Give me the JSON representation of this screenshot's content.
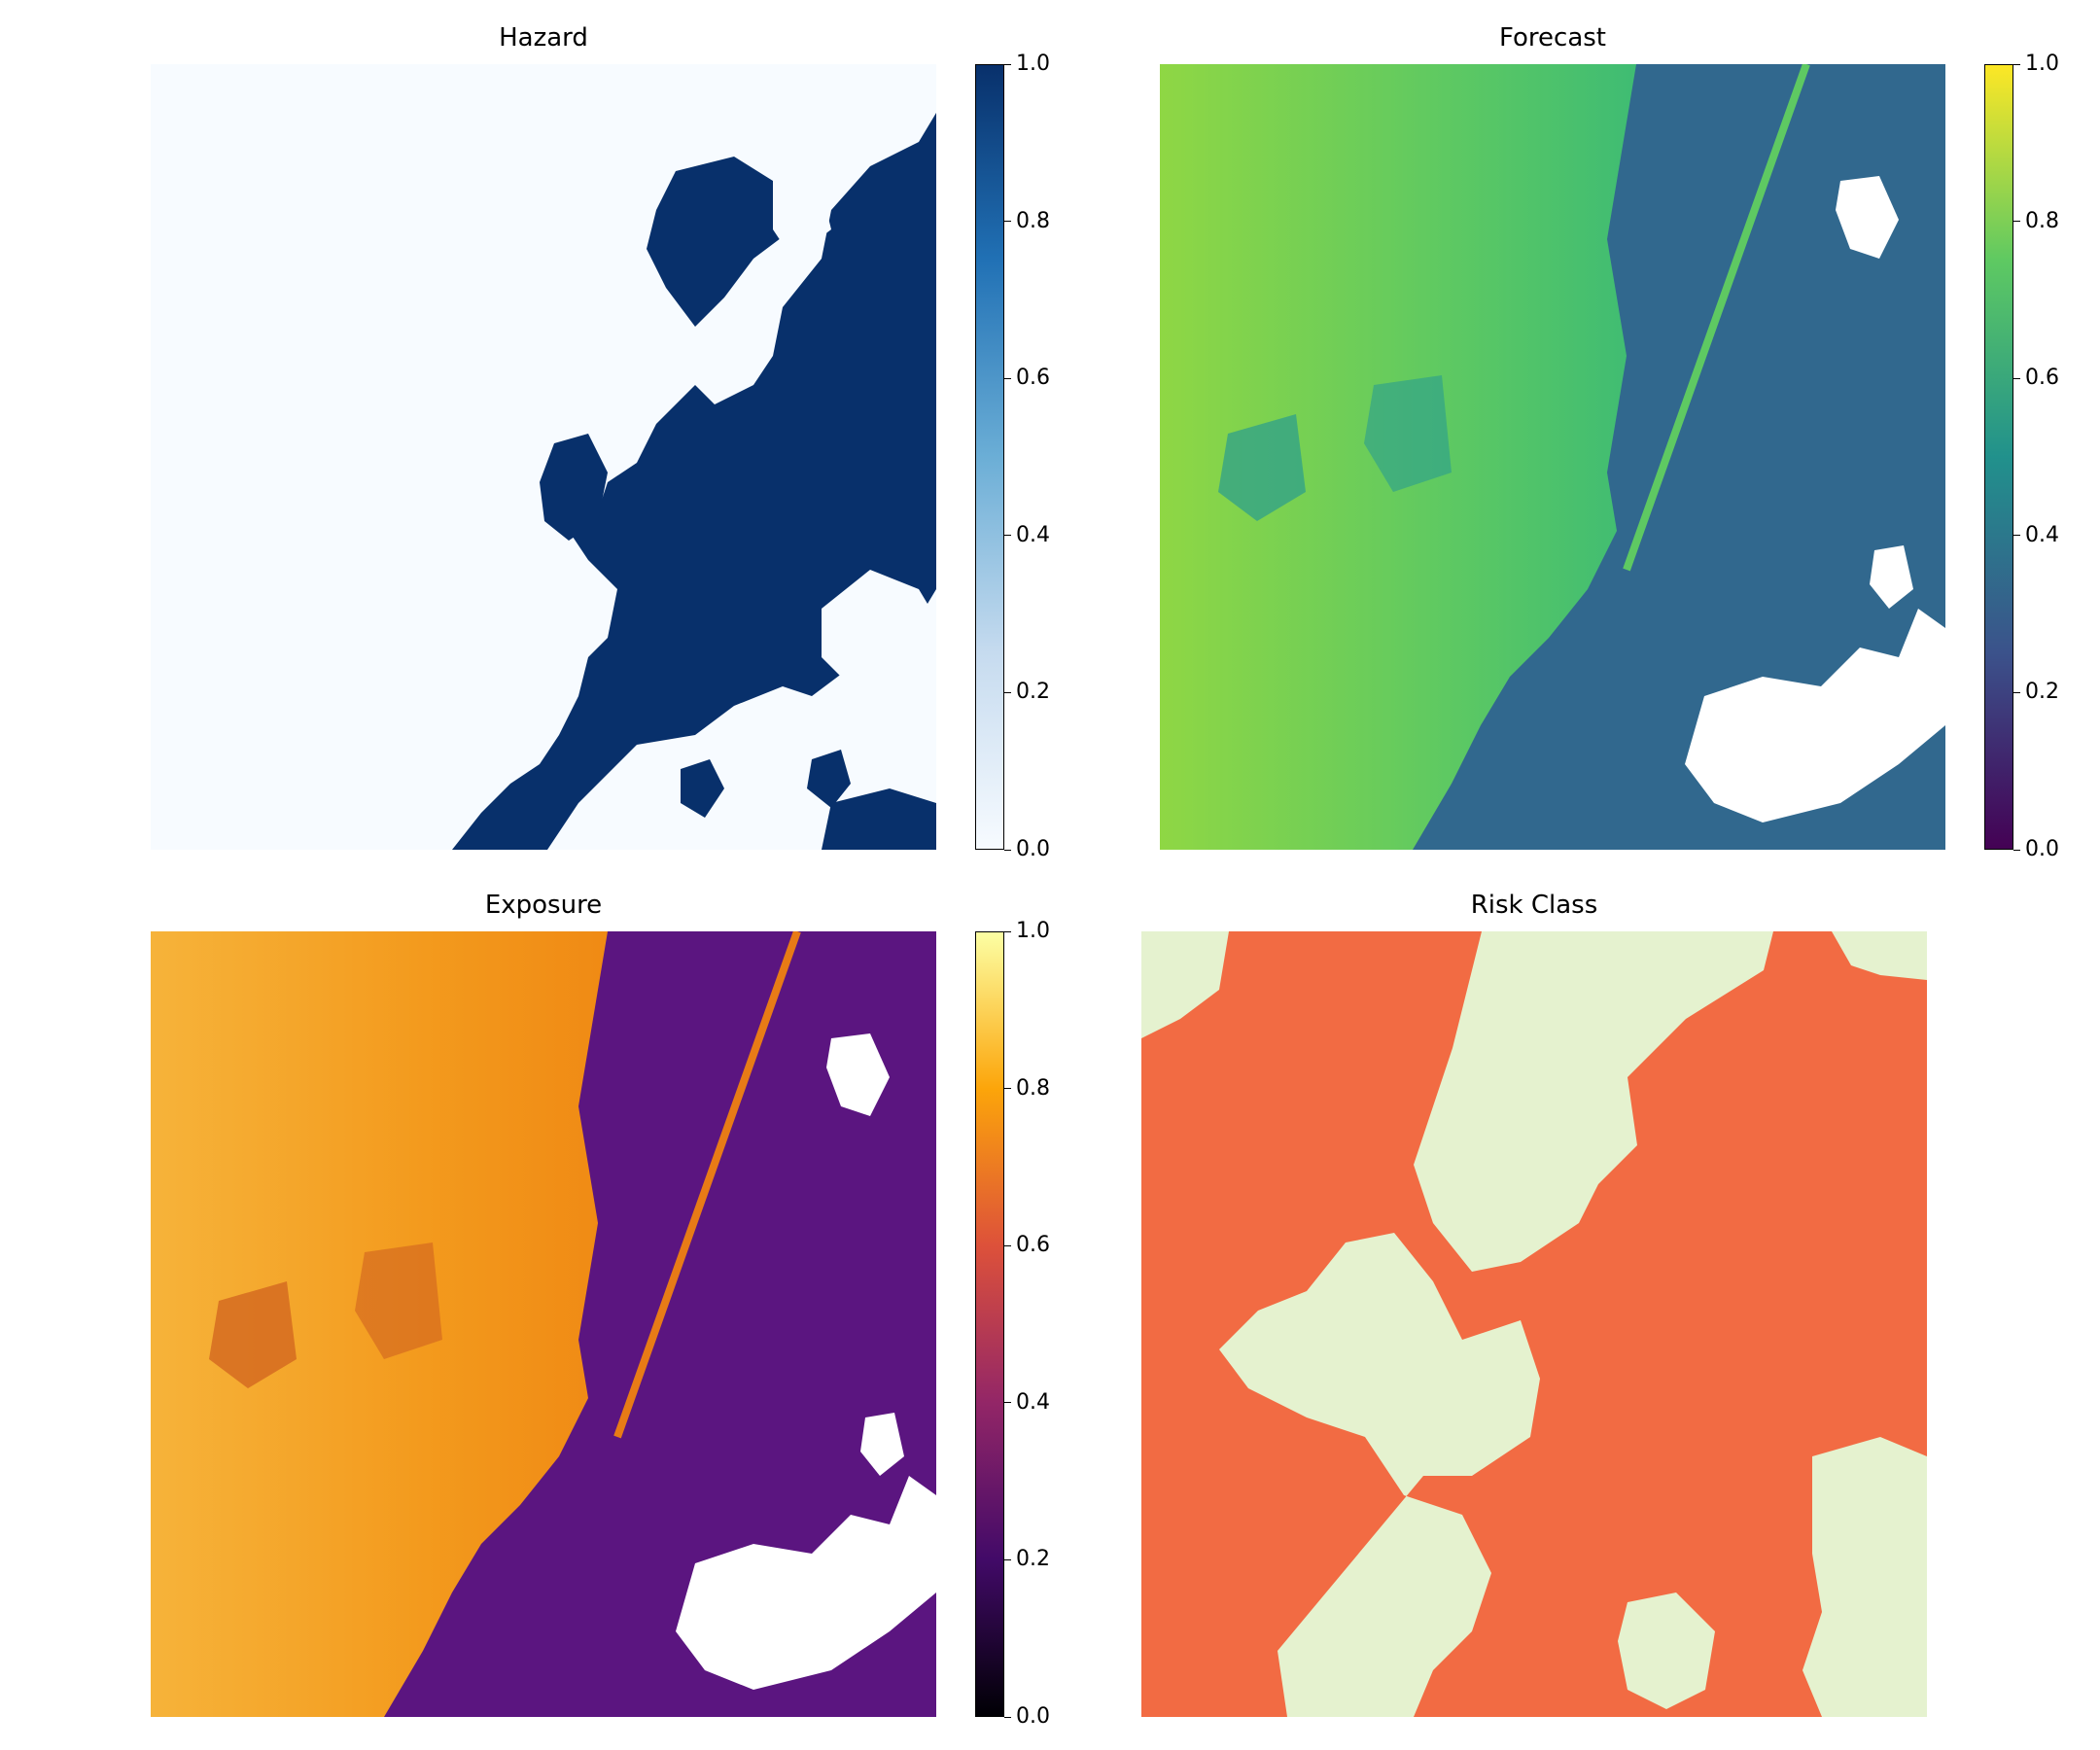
{
  "chart_data": [
    {
      "type": "heatmap",
      "title": "Hazard",
      "colormap": "Blues",
      "colors": [
        "#f7fbff",
        "#08306b"
      ],
      "colorbar": {
        "ticks": [
          "0.0",
          "0.2",
          "0.4",
          "0.6",
          "0.8",
          "1.0"
        ],
        "range": [
          0.0,
          1.0
        ]
      }
    },
    {
      "type": "heatmap",
      "title": "Forecast",
      "colormap": "viridis",
      "colors": [
        "#440154",
        "#3b528b",
        "#21918c",
        "#5ec962",
        "#fde725"
      ],
      "colorbar": {
        "ticks": [
          "0.0",
          "0.2",
          "0.4",
          "0.6",
          "0.8",
          "1.0"
        ],
        "range": [
          0.0,
          1.0
        ]
      }
    },
    {
      "type": "heatmap",
      "title": "Exposure",
      "colormap": "inferno",
      "colors": [
        "#000004",
        "#420a68",
        "#932667",
        "#dd513a",
        "#fca50a",
        "#fcffa4"
      ],
      "colorbar": {
        "ticks": [
          "0.0",
          "0.2",
          "0.4",
          "0.6",
          "0.8",
          "1.0"
        ],
        "range": [
          0.0,
          1.0
        ]
      }
    },
    {
      "type": "heatmap",
      "title": "Risk Class",
      "colormap": "categorical",
      "colors": [
        "#e5f2cf",
        "#f26b43"
      ]
    }
  ]
}
